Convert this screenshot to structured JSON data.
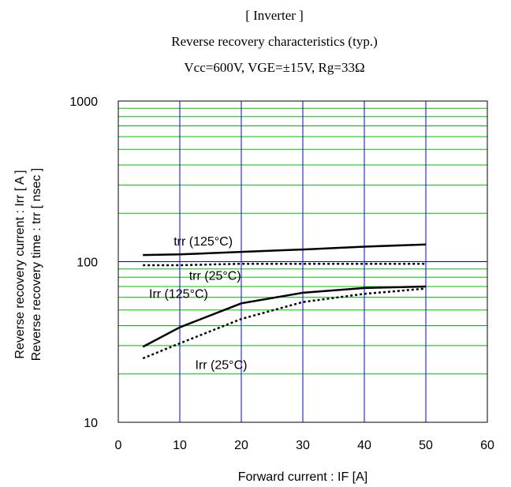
{
  "chart_data": {
    "type": "line",
    "title_lines": [
      "[ Inverter ]",
      "Reverse recovery characteristics  (typ.)",
      "Vcc=600V, VGE=±15V, Rg=33Ω"
    ],
    "xlabel": "Forward current : IF [A]",
    "ylabel_lines": [
      "Reverse recovery current :  Irr  [ A ]",
      "Reverse recovery time :  trr  [ nsec ]"
    ],
    "xlim": [
      0,
      60
    ],
    "ylim": [
      10,
      1000
    ],
    "yscale": "log",
    "x_ticks": [
      "0",
      "10",
      "20",
      "30",
      "40",
      "50",
      "60"
    ],
    "y_ticks": [
      "10",
      "100",
      "1000"
    ],
    "grid": true,
    "colors": {
      "major_grid": "#0000ff",
      "minor_grid": "#00c000",
      "axes": "#000000",
      "series": "#000000"
    },
    "series": [
      {
        "name": "trr (125°C)",
        "style": "solid",
        "x": [
          4,
          10,
          20,
          30,
          40,
          50
        ],
        "y": [
          110,
          111,
          115,
          119,
          124,
          128
        ]
      },
      {
        "name": "trr (25°C)",
        "style": "dotted",
        "x": [
          4,
          10,
          20,
          30,
          40,
          50
        ],
        "y": [
          95,
          95,
          97,
          97,
          97,
          97
        ]
      },
      {
        "name": "Irr (125°C)",
        "style": "solid",
        "x": [
          4,
          10,
          20,
          30,
          40,
          50
        ],
        "y": [
          29.5,
          39,
          55,
          64,
          68.5,
          70
        ]
      },
      {
        "name": "Irr (25°C)",
        "style": "dotted",
        "x": [
          4,
          10,
          20,
          30,
          40,
          50
        ],
        "y": [
          25,
          31,
          44,
          56,
          63,
          68
        ]
      }
    ],
    "annotations": [
      {
        "text": "trr (125°C)",
        "x": 9.0,
        "y": 126
      },
      {
        "text": "trr (25°C)",
        "x": 11.5,
        "y": 77
      },
      {
        "text": "Irr (125°C)",
        "x": 5.0,
        "y": 59.5
      },
      {
        "text": "Irr (25°C)",
        "x": 12.5,
        "y": 21.5
      }
    ]
  }
}
